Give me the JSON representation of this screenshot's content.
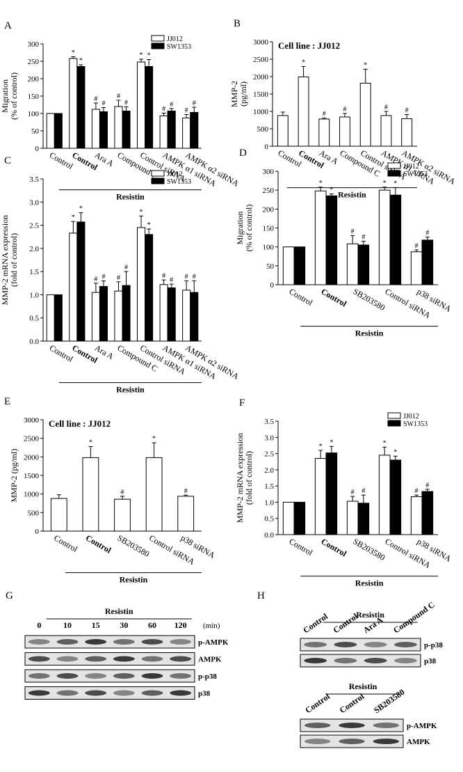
{
  "chart_data": [
    {
      "type": "bar",
      "panel": "A",
      "ylabel": [
        "Migration",
        "(% of control)"
      ],
      "categories": [
        "Control",
        "Control",
        "Ara A",
        "Compound C",
        "Control siRNA",
        "AMPK α1 siRNA",
        "AMPK α2 siRNA"
      ],
      "series": [
        {
          "name": "JJ012",
          "color": "#ffffff",
          "values": [
            100,
            258,
            112,
            120,
            248,
            93,
            87
          ],
          "errors": [
            0,
            5,
            18,
            18,
            8,
            8,
            10
          ],
          "annotations": [
            null,
            "*",
            "#",
            "#",
            "*",
            "#",
            "#"
          ]
        },
        {
          "name": "SW1353",
          "color": "#000000",
          "values": [
            100,
            235,
            105,
            107,
            235,
            107,
            103
          ],
          "errors": [
            0,
            5,
            12,
            12,
            20,
            7,
            15
          ],
          "annotations": [
            null,
            "*",
            "#",
            "#",
            "*",
            "#",
            "#"
          ]
        }
      ],
      "group_label": "Resistin",
      "ylim": [
        0,
        300
      ],
      "yticks": [
        0,
        50,
        100,
        150,
        200,
        250,
        300
      ],
      "legend": "upper right"
    },
    {
      "type": "bar",
      "panel": "B",
      "subtitle": "Cell line : JJ012",
      "ylabel": [
        "MMP-2",
        "(pg/ml)"
      ],
      "categories": [
        "Control",
        "Control",
        "Ara A",
        "Compound C",
        "Control siRNA",
        "AMPK α1 siRNA",
        "AMPK α2 siRNA"
      ],
      "color": "#ffffff",
      "values": [
        880,
        1990,
        780,
        840,
        1810,
        880,
        790
      ],
      "errors": [
        100,
        300,
        30,
        100,
        400,
        120,
        120
      ],
      "annotations": [
        null,
        "*",
        "#",
        "#",
        "*",
        "#",
        "#"
      ],
      "group_label": "Resistin",
      "ylim": [
        0,
        3000
      ],
      "yticks": [
        0,
        500,
        1000,
        1500,
        2000,
        2500,
        3000
      ]
    },
    {
      "type": "bar",
      "panel": "C",
      "ylabel": [
        "MMP-2 mRNA expression",
        "(fold of control)"
      ],
      "categories": [
        "Control",
        "Control",
        "Ara A",
        "Compound C",
        "Control siRNA",
        "AMPK α1 siRNA",
        "AMPK α2 siRNA"
      ],
      "series": [
        {
          "name": "JJ012",
          "color": "#ffffff",
          "values": [
            1,
            2.33,
            1.05,
            1.08,
            2.45,
            1.22,
            1.1
          ],
          "errors": [
            0,
            0.25,
            0.2,
            0.2,
            0.25,
            0.1,
            0.2
          ],
          "annotations": [
            null,
            "*",
            "#",
            "#",
            "*",
            "#",
            "#"
          ]
        },
        {
          "name": "SW1353",
          "color": "#000000",
          "values": [
            1,
            2.57,
            1.18,
            1.2,
            2.3,
            1.15,
            1.05
          ],
          "errors": [
            0,
            0.2,
            0.12,
            0.3,
            0.12,
            0.08,
            0.25
          ],
          "annotations": [
            null,
            "*",
            "#",
            "#",
            "*",
            "#",
            "#"
          ]
        }
      ],
      "group_label": "Resistin",
      "ylim": [
        0,
        3.5
      ],
      "yticks": [
        {
          "value": 0,
          "label": "0.0"
        },
        0.5,
        {
          "value": 1,
          "label": "1.0"
        },
        1.5,
        {
          "value": 2,
          "label": "2.0"
        },
        2.5,
        {
          "value": 3,
          "label": "3.0"
        },
        3.5
      ],
      "legend": "upper right"
    },
    {
      "type": "bar",
      "panel": "D",
      "ylabel": [
        "Migration",
        "(% of control)"
      ],
      "categories": [
        "Control",
        "Control",
        "SB203580",
        "Control siRNA",
        "p38 siRNA"
      ],
      "series": [
        {
          "name": "JJ012",
          "color": "#ffffff",
          "values": [
            100,
            248,
            108,
            250,
            87
          ],
          "errors": [
            0,
            10,
            22,
            8,
            5
          ],
          "annotations": [
            null,
            "*",
            "#",
            "*",
            "#"
          ]
        },
        {
          "name": "SW1353",
          "color": "#000000",
          "values": [
            100,
            235,
            105,
            237,
            118
          ],
          "errors": [
            0,
            5,
            10,
            20,
            8
          ],
          "annotations": [
            null,
            "*",
            "#",
            "*",
            "#"
          ]
        }
      ],
      "group_label": "Resistin",
      "ylim": [
        0,
        300
      ],
      "yticks": [
        0,
        50,
        100,
        150,
        200,
        250,
        300
      ],
      "legend": "upper right"
    },
    {
      "type": "bar",
      "panel": "E",
      "subtitle": "Cell line : JJ012",
      "ylabel": [
        "MMP-2 (pg/ml)"
      ],
      "categories": [
        "Control",
        "Control",
        "SB203580",
        "Control siRNA",
        "p38 siRNA"
      ],
      "color": "#ffffff",
      "values": [
        880,
        1980,
        860,
        1980,
        940
      ],
      "errors": [
        100,
        300,
        80,
        400,
        30
      ],
      "annotations": [
        null,
        "*",
        "#",
        "*",
        "#"
      ],
      "group_label": "Resistin",
      "ylim": [
        0,
        3000
      ],
      "yticks": [
        0,
        500,
        1000,
        1500,
        2000,
        2500,
        3000
      ]
    },
    {
      "type": "bar",
      "panel": "F",
      "ylabel": [
        "MMP-2 mRNA expression",
        "(fold of control)"
      ],
      "categories": [
        "Control",
        "Control",
        "SB203580",
        "Control siRNA",
        "p38 siRNA"
      ],
      "series": [
        {
          "name": "JJ012",
          "color": "#ffffff",
          "values": [
            1,
            2.35,
            1.03,
            2.45,
            1.17
          ],
          "errors": [
            0,
            0.25,
            0.15,
            0.25,
            0.05
          ],
          "annotations": [
            null,
            "*",
            "#",
            "*",
            "#"
          ]
        },
        {
          "name": "SW1353",
          "color": "#000000",
          "values": [
            1,
            2.52,
            0.97,
            2.3,
            1.33
          ],
          "errors": [
            0,
            0.2,
            0.25,
            0.12,
            0.07
          ],
          "annotations": [
            null,
            "*",
            "#",
            "*",
            "#"
          ]
        }
      ],
      "group_label": "Resistin",
      "ylim": [
        0,
        3.5
      ],
      "yticks": [
        {
          "value": 0,
          "label": "0.0"
        },
        0.5,
        {
          "value": 1,
          "label": "1.0"
        },
        1.5,
        {
          "value": 2,
          "label": "2.0"
        },
        2.5,
        {
          "value": 3,
          "label": "3.0"
        },
        3.5
      ],
      "legend": "upper right"
    }
  ],
  "blots": [
    {
      "panel": "G",
      "treatment": "Resistin",
      "lanes": [
        "0",
        "10",
        "15",
        "30",
        "60",
        "120"
      ],
      "unit": "(min)",
      "rows": [
        "p-AMPK",
        "AMPK",
        "p-p38",
        "p38"
      ]
    },
    {
      "panel": "H",
      "treatment": "Resistin",
      "lanes": [
        "Control",
        "Control",
        "Ara A",
        "Compound C"
      ],
      "rows": [
        "p-p38",
        "p38"
      ]
    },
    {
      "treatment": "Resistin",
      "lanes": [
        "Control",
        "Control",
        "SB203580"
      ],
      "rows": [
        "p-AMPK",
        "AMPK"
      ]
    }
  ]
}
